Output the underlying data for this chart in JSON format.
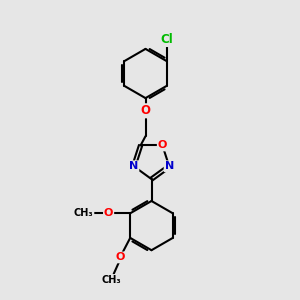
{
  "bg_color": "#e6e6e6",
  "bond_color": "#000000",
  "bond_width": 1.5,
  "atom_colors": {
    "O": "#ff0000",
    "N": "#0000cc",
    "Cl": "#00bb00",
    "C": "#000000"
  },
  "font_size_atoms": 8.5,
  "font_size_small": 7.0
}
